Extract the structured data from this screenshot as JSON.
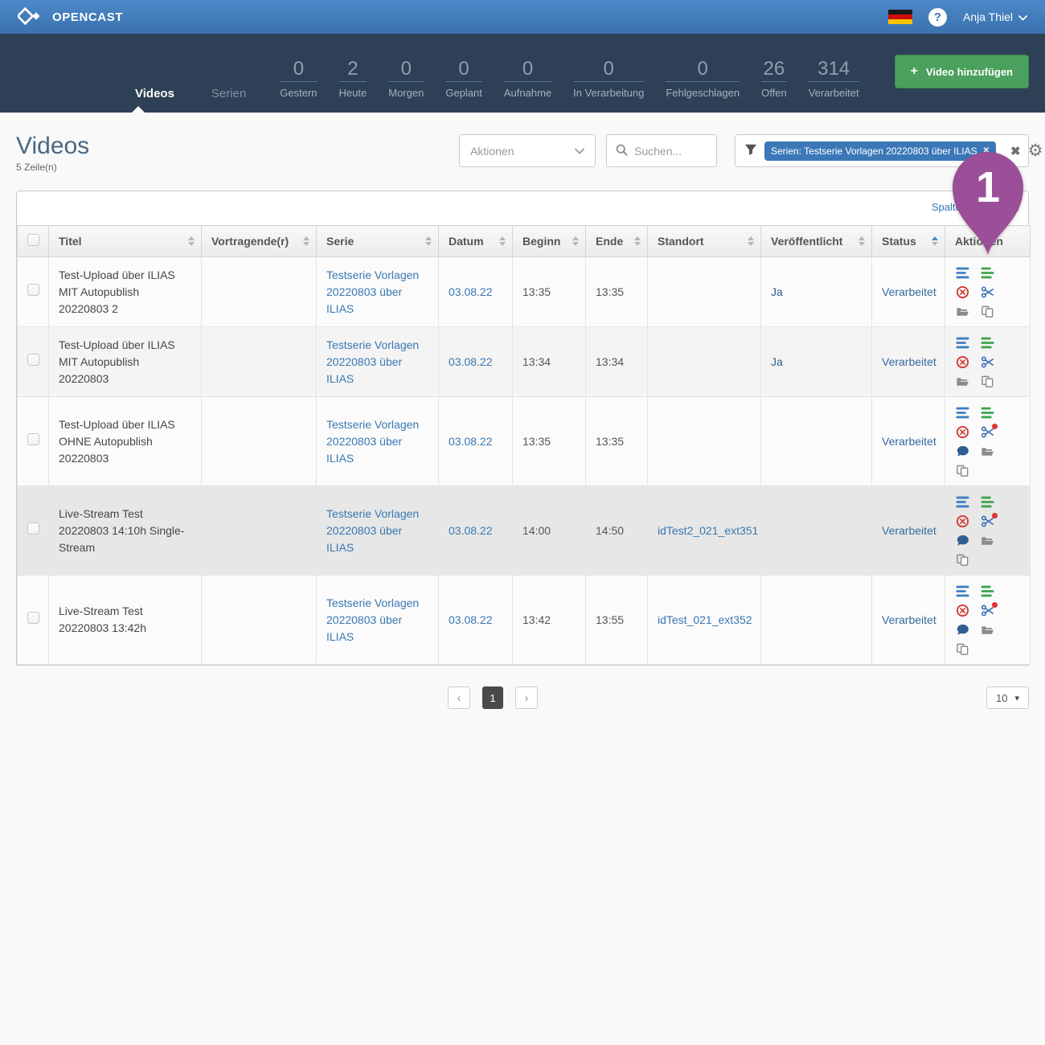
{
  "topbar": {
    "brand": "OPENCAST",
    "help_icon": "?",
    "user_name": "Anja Thiel"
  },
  "nav": {
    "tabs": [
      {
        "label": "Videos",
        "active": true
      },
      {
        "label": "Serien",
        "active": false
      }
    ],
    "stats": [
      {
        "value": "0",
        "label": "Gestern"
      },
      {
        "value": "2",
        "label": "Heute"
      },
      {
        "value": "0",
        "label": "Morgen"
      },
      {
        "value": "0",
        "label": "Geplant"
      },
      {
        "value": "0",
        "label": "Aufnahme"
      },
      {
        "value": "0",
        "label": "In Verarbeitung"
      },
      {
        "value": "0",
        "label": "Fehlgeschlagen"
      },
      {
        "value": "26",
        "label": "Offen"
      },
      {
        "value": "314",
        "label": "Verarbeitet"
      }
    ],
    "add_video_label": "Video hinzufügen",
    "plus_icon": "+"
  },
  "page": {
    "title": "Videos",
    "row_count": "5 Zeile(n)"
  },
  "toolbar": {
    "actions_label": "Aktionen",
    "caret_icon": "⌄",
    "search_placeholder": "Suchen...",
    "filter_chip": "Serien: Testserie Vorlagen 20220803 über ILIAS",
    "chip_close_icon": "✕",
    "clear_filters_icon": "✖",
    "filter_settings_icon": "⚙"
  },
  "table": {
    "edit_columns_label": "Spalten bearbeiten",
    "columns": [
      {
        "label": "Titel",
        "sortable": true
      },
      {
        "label": "Vortragende(r)",
        "sortable": true
      },
      {
        "label": "Serie",
        "sortable": true
      },
      {
        "label": "Datum",
        "sortable": true
      },
      {
        "label": "Beginn",
        "sortable": true
      },
      {
        "label": "Ende",
        "sortable": true
      },
      {
        "label": "Standort",
        "sortable": true
      },
      {
        "label": "Veröffentlicht",
        "sortable": true
      },
      {
        "label": "Status",
        "sortable": true,
        "sorted": "asc"
      },
      {
        "label": "Aktionen",
        "sortable": false
      }
    ],
    "rows": [
      {
        "title": "Test-Upload über ILIAS MIT Autopublish 20220803 2",
        "presenters": "",
        "series": "Testserie Vorlagen 20220803 über ILIAS",
        "date": "03.08.22",
        "start": "13:35",
        "end": "13:35",
        "location": "",
        "published": "Ja",
        "status": "Verarbeitet",
        "highlighted": false,
        "actions": [
          {
            "icon": "event-details"
          },
          {
            "icon": "edit-metadata"
          },
          {
            "icon": "delete"
          },
          {
            "icon": "video-editor"
          },
          {
            "icon": "assets"
          },
          {
            "icon": "duplicate"
          }
        ]
      },
      {
        "title": "Test-Upload über ILIAS MIT Autopublish 20220803",
        "presenters": "",
        "series": "Testserie Vorlagen 20220803 über ILIAS",
        "date": "03.08.22",
        "start": "13:34",
        "end": "13:34",
        "location": "",
        "published": "Ja",
        "status": "Verarbeitet",
        "highlighted": false,
        "actions": [
          {
            "icon": "event-details"
          },
          {
            "icon": "edit-metadata"
          },
          {
            "icon": "delete"
          },
          {
            "icon": "video-editor"
          },
          {
            "icon": "assets"
          },
          {
            "icon": "duplicate"
          }
        ]
      },
      {
        "title": "Test-Upload über ILIAS OHNE Autopublish 20220803",
        "presenters": "",
        "series": "Testserie Vorlagen 20220803 über ILIAS",
        "date": "03.08.22",
        "start": "13:35",
        "end": "13:35",
        "location": "",
        "published": "",
        "status": "Verarbeitet",
        "highlighted": false,
        "actions": [
          {
            "icon": "event-details"
          },
          {
            "icon": "edit-metadata"
          },
          {
            "icon": "delete"
          },
          {
            "icon": "video-editor",
            "badge": true
          },
          {
            "icon": "comments"
          },
          {
            "icon": "assets"
          },
          {
            "icon": "duplicate"
          }
        ]
      },
      {
        "title": "Live-Stream Test 20220803 14:10h Single-Stream",
        "presenters": "",
        "series": "Testserie Vorlagen 20220803 über ILIAS",
        "date": "03.08.22",
        "start": "14:00",
        "end": "14:50",
        "location": "idTest2_021_ext351",
        "published": "",
        "status": "Verarbeitet",
        "highlighted": true,
        "actions": [
          {
            "icon": "event-details"
          },
          {
            "icon": "edit-metadata"
          },
          {
            "icon": "delete"
          },
          {
            "icon": "video-editor",
            "badge": true
          },
          {
            "icon": "comments"
          },
          {
            "icon": "assets"
          },
          {
            "icon": "duplicate"
          }
        ]
      },
      {
        "title": "Live-Stream Test 20220803 13:42h",
        "presenters": "",
        "series": "Testserie Vorlagen 20220803 über ILIAS",
        "date": "03.08.22",
        "start": "13:42",
        "end": "13:55",
        "location": "idTest_021_ext352",
        "published": "",
        "status": "Verarbeitet",
        "highlighted": false,
        "actions": [
          {
            "icon": "event-details"
          },
          {
            "icon": "edit-metadata"
          },
          {
            "icon": "delete"
          },
          {
            "icon": "video-editor",
            "badge": true
          },
          {
            "icon": "comments"
          },
          {
            "icon": "assets"
          },
          {
            "icon": "duplicate"
          }
        ]
      }
    ]
  },
  "pagination": {
    "prev_icon": "‹",
    "current_page": "1",
    "next_icon": "›",
    "page_size": "10",
    "caret_icon": "▾"
  },
  "annotation": {
    "label": "1",
    "color": "#9b4f98"
  },
  "colors": {
    "topbar_blue": "#3a72ae",
    "navbar_dark": "#2d4055",
    "link_blue": "#3978b2",
    "chip_blue": "#3c78b8",
    "button_green": "#4aa05c",
    "icon_red": "#d23b33",
    "icon_green": "#3fa44d",
    "highlight_row": "#e7e7e7"
  }
}
